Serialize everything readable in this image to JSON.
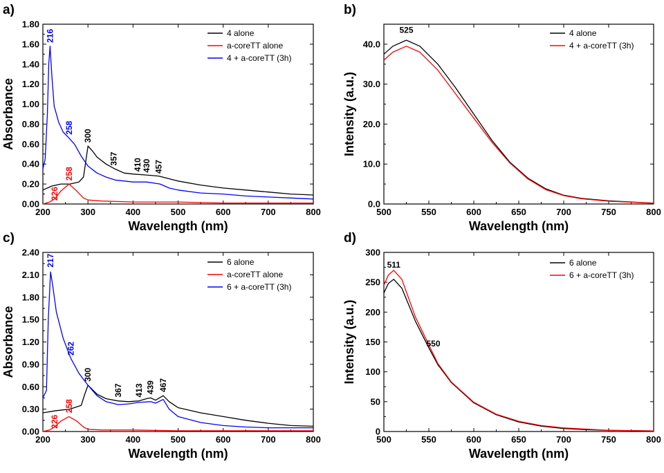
{
  "chart_data": [
    {
      "panel": "a)",
      "type": "line",
      "xlabel": "Wavelength (nm)",
      "ylabel": "Absorbance",
      "xlim": [
        200,
        800
      ],
      "ylim": [
        0,
        1.8
      ],
      "xticks": [
        200,
        300,
        400,
        500,
        600,
        700,
        800
      ],
      "yticks": [
        "0.00",
        "0.20",
        "0.40",
        "0.60",
        "0.80",
        "1.00",
        "1.20",
        "1.40",
        "1.60",
        "1.80"
      ],
      "legend_position": "top-right",
      "series": [
        {
          "name": "4 alone",
          "color": "#000000",
          "x": [
            200,
            220,
            240,
            260,
            280,
            290,
            295,
            300,
            310,
            320,
            340,
            360,
            380,
            400,
            430,
            457,
            500,
            550,
            600,
            650,
            700,
            750,
            800
          ],
          "y": [
            0.14,
            0.18,
            0.2,
            0.2,
            0.22,
            0.27,
            0.42,
            0.58,
            0.53,
            0.47,
            0.4,
            0.35,
            0.31,
            0.3,
            0.29,
            0.28,
            0.23,
            0.19,
            0.16,
            0.14,
            0.12,
            0.1,
            0.09
          ]
        },
        {
          "name": "a-coreTT alone",
          "color": "#ff0000",
          "x": [
            200,
            215,
            226,
            240,
            258,
            275,
            290,
            300,
            330,
            400,
            500,
            600,
            700,
            800
          ],
          "y": [
            0.0,
            0.02,
            0.05,
            0.13,
            0.2,
            0.13,
            0.06,
            0.04,
            0.03,
            0.02,
            0.02,
            0.01,
            0.01,
            0.01
          ]
        },
        {
          "name": "4 + a-coreTT (3h)",
          "color": "#0000ff",
          "x": [
            200,
            205,
            210,
            213,
            216,
            220,
            225,
            235,
            245,
            258,
            270,
            285,
            300,
            320,
            340,
            360,
            400,
            430,
            460,
            480,
            500,
            550,
            600,
            650,
            700,
            750,
            800
          ],
          "y": [
            0.35,
            0.45,
            0.9,
            1.4,
            1.58,
            1.28,
            0.98,
            0.82,
            0.72,
            0.66,
            0.6,
            0.48,
            0.38,
            0.31,
            0.27,
            0.24,
            0.22,
            0.22,
            0.2,
            0.16,
            0.14,
            0.11,
            0.1,
            0.08,
            0.07,
            0.06,
            0.05
          ]
        }
      ],
      "annotations": [
        {
          "text": "216",
          "x": 216,
          "y": 1.6,
          "color": "#0000ff",
          "rotate": true
        },
        {
          "text": "258",
          "x": 258,
          "y": 0.68,
          "color": "#0000ff",
          "rotate": true
        },
        {
          "text": "300",
          "x": 300,
          "y": 0.6,
          "color": "#000000",
          "rotate": true
        },
        {
          "text": "357",
          "x": 357,
          "y": 0.37,
          "color": "#000000",
          "rotate": true
        },
        {
          "text": "410",
          "x": 410,
          "y": 0.31,
          "color": "#000000",
          "rotate": true
        },
        {
          "text": "430",
          "x": 430,
          "y": 0.3,
          "color": "#000000",
          "rotate": true
        },
        {
          "text": "457",
          "x": 457,
          "y": 0.29,
          "color": "#000000",
          "rotate": true
        },
        {
          "text": "258",
          "x": 258,
          "y": 0.22,
          "color": "#ff0000",
          "rotate": true
        },
        {
          "text": "226",
          "x": 226,
          "y": 0.02,
          "color": "#ff0000",
          "rotate": true
        }
      ]
    },
    {
      "panel": "b)",
      "type": "line",
      "xlabel": "Wavelength (nm)",
      "ylabel": "Intensity (a.u.)",
      "xlim": [
        500,
        800
      ],
      "ylim": [
        0,
        45
      ],
      "xticks": [
        500,
        550,
        600,
        650,
        700,
        750,
        800
      ],
      "yticks": [
        "0.0",
        "10.0",
        "20.0",
        "30.0",
        "40.0"
      ],
      "legend_position": "top-right",
      "series": [
        {
          "name": "4 alone",
          "color": "#000000",
          "x": [
            500,
            510,
            525,
            540,
            560,
            580,
            600,
            620,
            640,
            660,
            680,
            700,
            720,
            750,
            800
          ],
          "y": [
            37.5,
            39.5,
            41.0,
            39.5,
            35.0,
            29.0,
            22.5,
            16.0,
            10.5,
            6.5,
            3.8,
            2.2,
            1.4,
            0.8,
            0.2
          ]
        },
        {
          "name": "4 + a-coreTT (3h)",
          "color": "#ff0000",
          "x": [
            500,
            510,
            525,
            540,
            560,
            580,
            600,
            620,
            640,
            660,
            680,
            700,
            720,
            750,
            800
          ],
          "y": [
            36.0,
            38.0,
            39.5,
            38.0,
            33.5,
            27.5,
            21.5,
            15.5,
            10.3,
            6.3,
            3.6,
            2.1,
            1.3,
            0.7,
            0.2
          ]
        }
      ],
      "annotations": [
        {
          "text": "525",
          "x": 525,
          "y": 42.5,
          "color": "#000000",
          "rotate": false
        }
      ]
    },
    {
      "panel": "c)",
      "type": "line",
      "xlabel": "Wavelength (nm)",
      "ylabel": "Absorbance",
      "xlim": [
        200,
        800
      ],
      "ylim": [
        0,
        2.4
      ],
      "xticks": [
        200,
        300,
        400,
        500,
        600,
        700,
        800
      ],
      "yticks": [
        "0.00",
        "0.30",
        "0.60",
        "0.90",
        "1.20",
        "1.50",
        "1.80",
        "2.10",
        "2.40"
      ],
      "legend_position": "top-right",
      "series": [
        {
          "name": "6 alone",
          "color": "#000000",
          "x": [
            200,
            230,
            260,
            285,
            293,
            300,
            320,
            340,
            367,
            390,
            413,
            430,
            439,
            450,
            467,
            480,
            500,
            550,
            600,
            650,
            700,
            750,
            800
          ],
          "y": [
            0.25,
            0.28,
            0.3,
            0.35,
            0.5,
            0.62,
            0.5,
            0.44,
            0.41,
            0.4,
            0.41,
            0.44,
            0.45,
            0.42,
            0.48,
            0.4,
            0.32,
            0.25,
            0.2,
            0.15,
            0.11,
            0.08,
            0.07
          ]
        },
        {
          "name": "a-coreTT alone",
          "color": "#ff0000",
          "x": [
            200,
            215,
            226,
            240,
            258,
            275,
            290,
            300,
            330,
            400,
            500,
            600,
            700,
            800
          ],
          "y": [
            0.0,
            0.02,
            0.06,
            0.14,
            0.2,
            0.14,
            0.06,
            0.03,
            0.02,
            0.02,
            0.01,
            0.01,
            0.01,
            0.01
          ]
        },
        {
          "name": "6 + a-coreTT (3h)",
          "color": "#0000ff",
          "x": [
            200,
            208,
            212,
            217,
            222,
            230,
            245,
            262,
            280,
            300,
            320,
            340,
            367,
            390,
            413,
            439,
            450,
            467,
            480,
            500,
            550,
            600,
            650,
            700,
            750,
            800
          ],
          "y": [
            0.45,
            0.55,
            1.5,
            2.14,
            1.95,
            1.6,
            1.25,
            0.98,
            0.78,
            0.62,
            0.48,
            0.4,
            0.36,
            0.37,
            0.39,
            0.4,
            0.38,
            0.43,
            0.3,
            0.2,
            0.12,
            0.08,
            0.06,
            0.05,
            0.05,
            0.05
          ]
        }
      ],
      "annotations": [
        {
          "text": "217",
          "x": 217,
          "y": 2.18,
          "color": "#0000ff",
          "rotate": true
        },
        {
          "text": "262",
          "x": 262,
          "y": 1.0,
          "color": "#0000ff",
          "rotate": true
        },
        {
          "text": "300",
          "x": 300,
          "y": 0.65,
          "color": "#000000",
          "rotate": true
        },
        {
          "text": "367",
          "x": 367,
          "y": 0.44,
          "color": "#000000",
          "rotate": true
        },
        {
          "text": "413",
          "x": 413,
          "y": 0.44,
          "color": "#000000",
          "rotate": true
        },
        {
          "text": "439",
          "x": 439,
          "y": 0.48,
          "color": "#000000",
          "rotate": true
        },
        {
          "text": "467",
          "x": 467,
          "y": 0.51,
          "color": "#000000",
          "rotate": true
        },
        {
          "text": "258",
          "x": 258,
          "y": 0.23,
          "color": "#ff0000",
          "rotate": true
        },
        {
          "text": "226",
          "x": 226,
          "y": 0.02,
          "color": "#ff0000",
          "rotate": true
        }
      ]
    },
    {
      "panel": "d)",
      "type": "line",
      "xlabel": "Wavelength (nm)",
      "ylabel": "Intensity (a.u.)",
      "xlim": [
        500,
        800
      ],
      "ylim": [
        0,
        300
      ],
      "xticks": [
        500,
        550,
        600,
        650,
        700,
        750,
        800
      ],
      "yticks": [
        "0",
        "50",
        "100",
        "150",
        "200",
        "250",
        "300"
      ],
      "legend_position": "top-right",
      "series": [
        {
          "name": "6 alone",
          "color": "#000000",
          "x": [
            500,
            505,
            511,
            520,
            535,
            550,
            560,
            575,
            600,
            625,
            650,
            675,
            700,
            725,
            750,
            800
          ],
          "y": [
            232,
            248,
            255,
            240,
            185,
            140,
            112,
            82,
            48,
            28,
            16,
            9,
            5,
            3,
            2,
            1
          ]
        },
        {
          "name": "6 + a-coreTT (3h)",
          "color": "#ff0000",
          "x": [
            500,
            505,
            511,
            520,
            535,
            550,
            560,
            575,
            600,
            625,
            650,
            675,
            700,
            725,
            750,
            800
          ],
          "y": [
            245,
            262,
            270,
            255,
            192,
            145,
            114,
            83,
            49,
            29,
            17,
            10,
            6,
            4,
            2,
            1
          ]
        }
      ],
      "annotations": [
        {
          "text": "511",
          "x": 511,
          "y": 272,
          "color": "#000000",
          "rotate": false
        },
        {
          "text": "550",
          "x": 555,
          "y": 140,
          "color": "#000000",
          "rotate": false
        }
      ]
    }
  ]
}
